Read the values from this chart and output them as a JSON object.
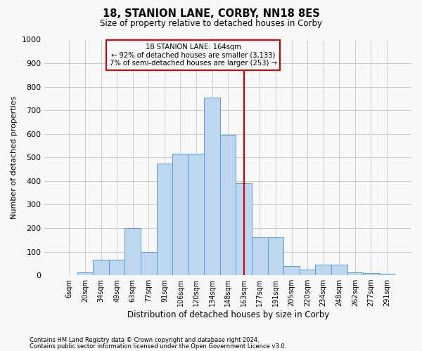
{
  "title1": "18, STANION LANE, CORBY, NN18 8ES",
  "title2": "Size of property relative to detached houses in Corby",
  "xlabel": "Distribution of detached houses by size in Corby",
  "ylabel": "Number of detached properties",
  "categories": [
    "6sqm",
    "20sqm",
    "34sqm",
    "49sqm",
    "63sqm",
    "77sqm",
    "91sqm",
    "106sqm",
    "120sqm",
    "134sqm",
    "148sqm",
    "163sqm",
    "177sqm",
    "191sqm",
    "205sqm",
    "220sqm",
    "234sqm",
    "248sqm",
    "262sqm",
    "277sqm",
    "291sqm"
  ],
  "values": [
    0,
    12,
    65,
    65,
    200,
    100,
    475,
    515,
    515,
    755,
    595,
    390,
    160,
    160,
    40,
    25,
    45,
    45,
    12,
    8,
    5
  ],
  "bar_color": "#BDD7EE",
  "bar_edge_color": "#5B9BD5",
  "vline_color": "#CC0000",
  "annotation_title": "18 STANION LANE: 164sqm",
  "annotation_line1": "← 92% of detached houses are smaller (3,133)",
  "annotation_line2": "7% of semi-detached houses are larger (253) →",
  "annotation_box_color": "#CC0000",
  "ylim": [
    0,
    1000
  ],
  "yticks": [
    0,
    100,
    200,
    300,
    400,
    500,
    600,
    700,
    800,
    900,
    1000
  ],
  "footer1": "Contains HM Land Registry data © Crown copyright and database right 2024.",
  "footer2": "Contains public sector information licensed under the Open Government Licence v3.0.",
  "bg_color": "#F8F8F8",
  "grid_color": "#CCCCCC"
}
